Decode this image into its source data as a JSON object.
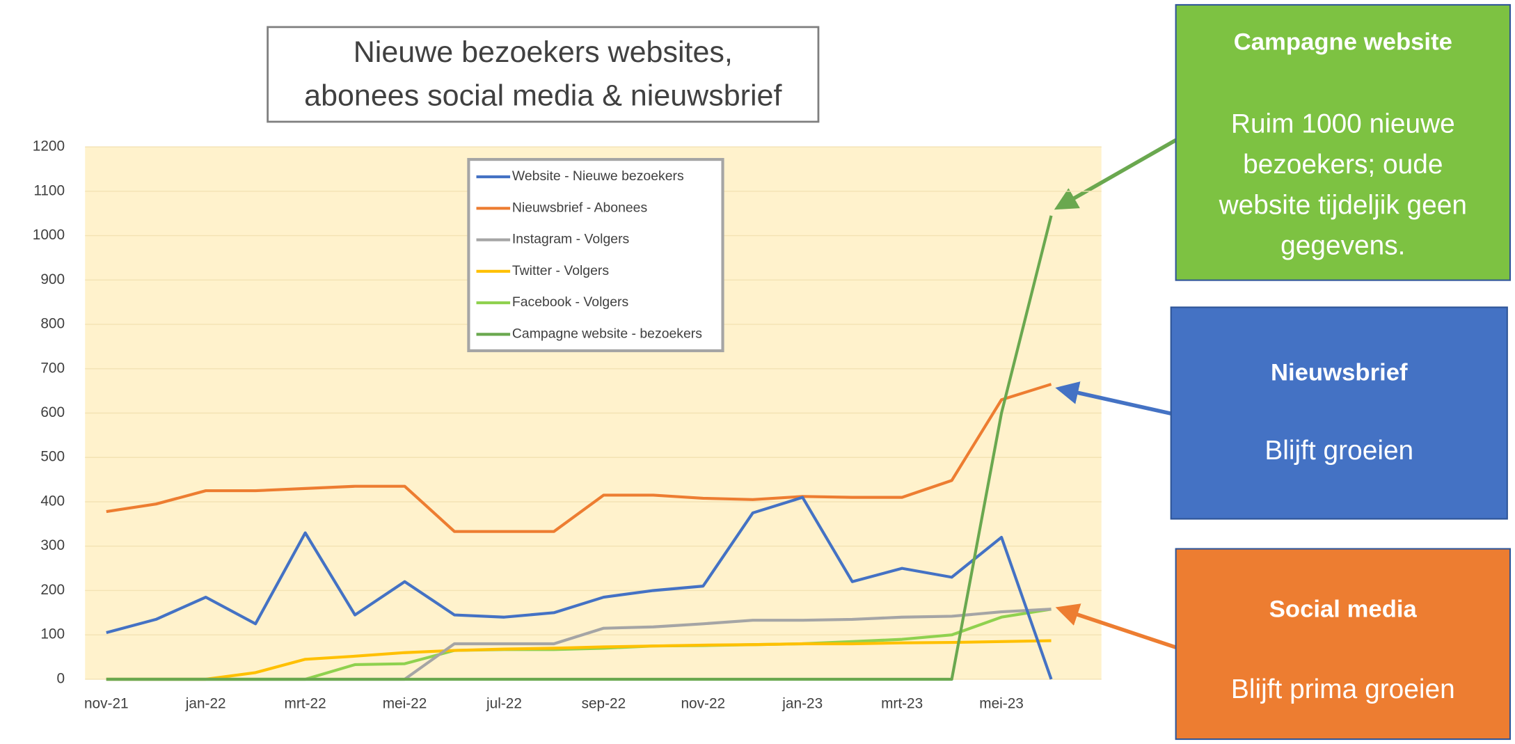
{
  "chart_data": {
    "type": "line",
    "title": [
      "Nieuwe bezoekers websites,",
      "abonees social media & nieuwsbrief"
    ],
    "categories": [
      "nov-21",
      null,
      "jan-22",
      null,
      "mrt-22",
      null,
      "mei-22",
      null,
      "jul-22",
      null,
      "sep-22",
      null,
      "nov-22",
      null,
      "jan-23",
      null,
      "mrt-23",
      null,
      "mei-23",
      null
    ],
    "series": [
      {
        "name": "Website - Nieuwe bezoekers",
        "color": "#4472c4",
        "values": [
          105,
          135,
          185,
          125,
          330,
          145,
          220,
          145,
          140,
          150,
          185,
          200,
          210,
          375,
          410,
          220,
          250,
          230,
          320,
          0
        ]
      },
      {
        "name": "Nieuwsbrief - Abonees",
        "color": "#ed7d31",
        "values": [
          378,
          395,
          425,
          425,
          430,
          435,
          435,
          333,
          333,
          333,
          415,
          415,
          408,
          405,
          412,
          410,
          410,
          448,
          630,
          665
        ]
      },
      {
        "name": "Instagram - Volgers",
        "color": "#a5a5a5",
        "values": [
          0,
          0,
          0,
          0,
          0,
          0,
          0,
          80,
          80,
          80,
          115,
          118,
          125,
          133,
          133,
          135,
          140,
          142,
          152,
          158
        ]
      },
      {
        "name": "Twitter - Volgers",
        "color": "#ffc000",
        "values": [
          0,
          0,
          0,
          15,
          45,
          52,
          60,
          65,
          68,
          70,
          73,
          75,
          77,
          78,
          80,
          80,
          82,
          83,
          85,
          87
        ]
      },
      {
        "name": "Facebook - Volgers",
        "color": "#8fd14f",
        "values": [
          0,
          0,
          0,
          0,
          0,
          33,
          35,
          65,
          67,
          67,
          70,
          75,
          76,
          78,
          80,
          85,
          90,
          100,
          140,
          158
        ]
      },
      {
        "name": "Campagne website - bezoekers",
        "color": "#6aa84f",
        "values": [
          0,
          0,
          0,
          0,
          0,
          0,
          0,
          0,
          0,
          0,
          0,
          0,
          0,
          0,
          0,
          0,
          0,
          0,
          600,
          1045
        ]
      }
    ],
    "ylim": [
      0,
      1200
    ],
    "yticks": [
      0,
      100,
      200,
      300,
      400,
      500,
      600,
      700,
      800,
      900,
      1000,
      1100,
      1200
    ],
    "grid": true,
    "annotations": [
      {
        "title": "Campagne website",
        "text": [
          "Ruim 1000 nieuwe",
          "bezoekers; oude",
          "website tijdeljik geen",
          "gegevens."
        ],
        "color": "#7dc242"
      },
      {
        "title": "Nieuwsbrief",
        "text": [
          "Blijft groeien"
        ],
        "color": "#4472c4"
      },
      {
        "title": "Social media",
        "text": [
          "Blijft prima groeien"
        ],
        "color": "#ed7d31"
      }
    ]
  }
}
